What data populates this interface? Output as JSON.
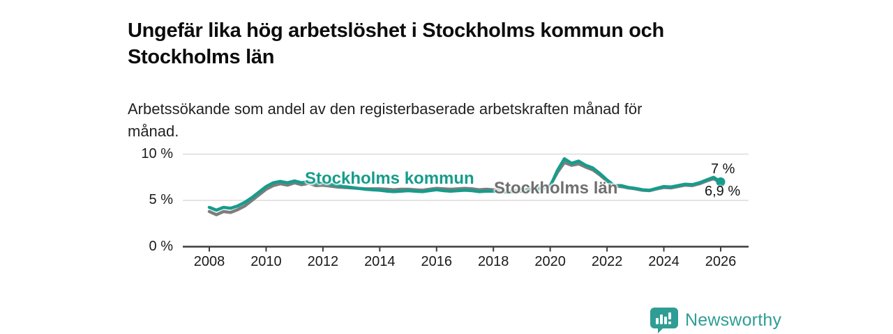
{
  "header": {
    "title_lines": [
      "Ungefär lika hög arbetslöshet i Stockholms kommun och",
      "Stockholms län"
    ],
    "subtitle_lines": [
      "Arbetssökande som andel av den registerbaserade arbetskraften månad för",
      "månad."
    ]
  },
  "chart_data": {
    "type": "line",
    "title": "Ungefär lika hög arbetslöshet i Stockholms kommun och Stockholms län",
    "subtitle": "Arbetssökande som andel av den registerbaserade arbetskraften månad för månad.",
    "x_unit": "year",
    "x_start": 2008,
    "x_step": 0.25,
    "ylim": [
      0,
      10
    ],
    "xlim": [
      2007.2,
      2027.0
    ],
    "grid": "horizontal",
    "legend_position": "inline-labels",
    "y_ticks": [
      {
        "value": 0,
        "label": "0 %"
      },
      {
        "value": 5,
        "label": "5 %"
      },
      {
        "value": 10,
        "label": "10 %"
      }
    ],
    "x_ticks": [
      {
        "value": 2008,
        "label": "2008"
      },
      {
        "value": 2010,
        "label": "2010"
      },
      {
        "value": 2012,
        "label": "2012"
      },
      {
        "value": 2014,
        "label": "2014"
      },
      {
        "value": 2016,
        "label": "2016"
      },
      {
        "value": 2018,
        "label": "2018"
      },
      {
        "value": 2020,
        "label": "2020"
      },
      {
        "value": 2022,
        "label": "2022"
      },
      {
        "value": 2024,
        "label": "2024"
      },
      {
        "value": 2026,
        "label": "2026"
      }
    ],
    "series": [
      {
        "name": "Stockholms län",
        "color": "#7d7d7d",
        "values": [
          3.8,
          3.45,
          3.8,
          3.7,
          4.0,
          4.4,
          5.0,
          5.6,
          6.2,
          6.6,
          6.8,
          6.65,
          6.9,
          6.7,
          6.85,
          6.6,
          6.65,
          6.55,
          6.45,
          6.4,
          6.35,
          6.3,
          6.25,
          6.25,
          6.25,
          6.2,
          6.15,
          6.2,
          6.2,
          6.15,
          6.1,
          6.2,
          6.3,
          6.25,
          6.2,
          6.25,
          6.3,
          6.25,
          6.15,
          6.2,
          6.15,
          6.1,
          6.0,
          6.05,
          6.1,
          6.2,
          6.3,
          6.4,
          6.6,
          8.0,
          9.1,
          8.8,
          8.95,
          8.6,
          8.3,
          7.75,
          7.1,
          6.55,
          6.5,
          6.35,
          6.25,
          6.1,
          6.05,
          6.25,
          6.4,
          6.35,
          6.5,
          6.65,
          6.6,
          6.8,
          7.1,
          7.35,
          6.9
        ]
      },
      {
        "name": "Stockholms kommun",
        "color": "#179c8c",
        "values": [
          4.25,
          3.95,
          4.25,
          4.15,
          4.4,
          4.8,
          5.3,
          5.9,
          6.5,
          6.9,
          7.05,
          6.9,
          7.1,
          6.9,
          7.05,
          6.8,
          6.9,
          6.75,
          6.6,
          6.5,
          6.4,
          6.3,
          6.2,
          6.15,
          6.1,
          6.0,
          5.95,
          6.0,
          6.05,
          6.0,
          5.95,
          6.05,
          6.15,
          6.05,
          6.0,
          6.05,
          6.1,
          6.05,
          5.95,
          6.0,
          6.0,
          5.95,
          5.9,
          5.95,
          6.0,
          6.1,
          6.2,
          6.3,
          6.5,
          8.2,
          9.5,
          9.0,
          9.25,
          8.8,
          8.5,
          7.9,
          7.2,
          6.6,
          6.6,
          6.4,
          6.3,
          6.15,
          6.1,
          6.3,
          6.5,
          6.45,
          6.6,
          6.75,
          6.7,
          6.9,
          7.2,
          7.5,
          7.0
        ]
      }
    ],
    "end_labels": [
      "7 %",
      "6,9 %"
    ],
    "end_values": {
      "Stockholms kommun": 7.0,
      "Stockholms län": 6.9
    },
    "end_dot": {
      "series": "Stockholms kommun",
      "value": 7.0
    }
  },
  "footer": {
    "brand": "Newsworthy",
    "brand_color": "#2f9d95",
    "icon": "newsworthy-speech-bubble-chart-icon"
  },
  "colors": {
    "accent_teal": "#179c8c",
    "series_gray": "#7d7d7d",
    "axis": "#3c3c3c",
    "gridline": "#dcdcdc",
    "text": "#1a1a1a"
  }
}
